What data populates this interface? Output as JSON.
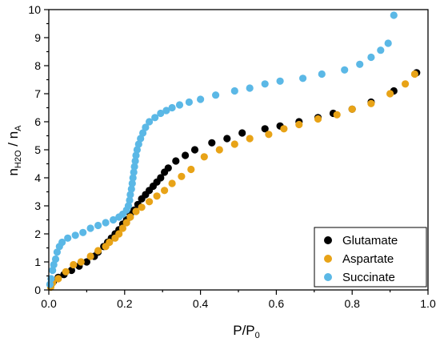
{
  "chart_data": {
    "type": "scatter",
    "xlabel": "P/P",
    "xlabel_sub": "0",
    "ylabel_main_1": "n",
    "ylabel_sub_1": "H2O",
    "ylabel_main_2": " / n",
    "ylabel_sub_2": "A",
    "xlim": [
      0.0,
      1.0
    ],
    "ylim": [
      0,
      10
    ],
    "x_ticks": [
      "0.0",
      "0.2",
      "0.4",
      "0.6",
      "0.8",
      "1.0"
    ],
    "y_ticks": [
      "0",
      "1",
      "2",
      "3",
      "4",
      "5",
      "6",
      "7",
      "8",
      "9",
      "10"
    ],
    "legend_position": "bottom-right",
    "series": [
      {
        "name": "Glutamate",
        "color": "#000000",
        "points": [
          [
            0.005,
            0.15
          ],
          [
            0.012,
            0.3
          ],
          [
            0.025,
            0.45
          ],
          [
            0.04,
            0.55
          ],
          [
            0.06,
            0.7
          ],
          [
            0.08,
            0.85
          ],
          [
            0.1,
            1.0
          ],
          [
            0.12,
            1.2
          ],
          [
            0.13,
            1.35
          ],
          [
            0.145,
            1.55
          ],
          [
            0.155,
            1.7
          ],
          [
            0.165,
            1.85
          ],
          [
            0.175,
            2.0
          ],
          [
            0.185,
            2.15
          ],
          [
            0.195,
            2.35
          ],
          [
            0.205,
            2.5
          ],
          [
            0.215,
            2.7
          ],
          [
            0.225,
            2.85
          ],
          [
            0.235,
            3.05
          ],
          [
            0.245,
            3.25
          ],
          [
            0.255,
            3.4
          ],
          [
            0.265,
            3.55
          ],
          [
            0.275,
            3.7
          ],
          [
            0.285,
            3.85
          ],
          [
            0.295,
            4.0
          ],
          [
            0.305,
            4.2
          ],
          [
            0.315,
            4.35
          ],
          [
            0.335,
            4.6
          ],
          [
            0.36,
            4.8
          ],
          [
            0.385,
            5.0
          ],
          [
            0.43,
            5.25
          ],
          [
            0.47,
            5.4
          ],
          [
            0.51,
            5.6
          ],
          [
            0.57,
            5.75
          ],
          [
            0.61,
            5.85
          ],
          [
            0.66,
            6.0
          ],
          [
            0.71,
            6.15
          ],
          [
            0.75,
            6.3
          ],
          [
            0.8,
            6.45
          ],
          [
            0.85,
            6.7
          ],
          [
            0.91,
            7.1
          ],
          [
            0.97,
            7.75
          ]
        ]
      },
      {
        "name": "Aspartate",
        "color": "#E8A317",
        "points": [
          [
            0.005,
            0.1
          ],
          [
            0.01,
            0.25
          ],
          [
            0.025,
            0.4
          ],
          [
            0.045,
            0.65
          ],
          [
            0.065,
            0.9
          ],
          [
            0.085,
            1.0
          ],
          [
            0.11,
            1.2
          ],
          [
            0.13,
            1.4
          ],
          [
            0.15,
            1.55
          ],
          [
            0.16,
            1.7
          ],
          [
            0.175,
            1.85
          ],
          [
            0.185,
            2.0
          ],
          [
            0.195,
            2.2
          ],
          [
            0.205,
            2.4
          ],
          [
            0.215,
            2.6
          ],
          [
            0.23,
            2.8
          ],
          [
            0.245,
            2.95
          ],
          [
            0.265,
            3.15
          ],
          [
            0.285,
            3.35
          ],
          [
            0.305,
            3.55
          ],
          [
            0.325,
            3.8
          ],
          [
            0.35,
            4.05
          ],
          [
            0.375,
            4.3
          ],
          [
            0.41,
            4.75
          ],
          [
            0.45,
            5.0
          ],
          [
            0.49,
            5.2
          ],
          [
            0.53,
            5.4
          ],
          [
            0.58,
            5.55
          ],
          [
            0.62,
            5.75
          ],
          [
            0.66,
            5.9
          ],
          [
            0.71,
            6.1
          ],
          [
            0.76,
            6.25
          ],
          [
            0.8,
            6.45
          ],
          [
            0.85,
            6.65
          ],
          [
            0.9,
            7.0
          ],
          [
            0.94,
            7.35
          ],
          [
            0.965,
            7.7
          ]
        ]
      },
      {
        "name": "Succinate",
        "color": "#5BB8E6",
        "points": [
          [
            0.003,
            0.2
          ],
          [
            0.006,
            0.4
          ],
          [
            0.01,
            0.7
          ],
          [
            0.013,
            0.9
          ],
          [
            0.018,
            1.1
          ],
          [
            0.022,
            1.35
          ],
          [
            0.028,
            1.55
          ],
          [
            0.035,
            1.7
          ],
          [
            0.05,
            1.85
          ],
          [
            0.07,
            1.95
          ],
          [
            0.09,
            2.05
          ],
          [
            0.11,
            2.2
          ],
          [
            0.13,
            2.3
          ],
          [
            0.15,
            2.4
          ],
          [
            0.17,
            2.5
          ],
          [
            0.185,
            2.6
          ],
          [
            0.195,
            2.7
          ],
          [
            0.205,
            2.85
          ],
          [
            0.21,
            3.0
          ],
          [
            0.213,
            3.2
          ],
          [
            0.215,
            3.4
          ],
          [
            0.218,
            3.6
          ],
          [
            0.22,
            3.8
          ],
          [
            0.222,
            4.0
          ],
          [
            0.224,
            4.2
          ],
          [
            0.226,
            4.4
          ],
          [
            0.228,
            4.6
          ],
          [
            0.23,
            4.8
          ],
          [
            0.233,
            5.0
          ],
          [
            0.237,
            5.2
          ],
          [
            0.242,
            5.4
          ],
          [
            0.248,
            5.6
          ],
          [
            0.255,
            5.8
          ],
          [
            0.265,
            6.0
          ],
          [
            0.28,
            6.15
          ],
          [
            0.295,
            6.3
          ],
          [
            0.31,
            6.4
          ],
          [
            0.325,
            6.5
          ],
          [
            0.345,
            6.6
          ],
          [
            0.37,
            6.7
          ],
          [
            0.4,
            6.8
          ],
          [
            0.44,
            6.95
          ],
          [
            0.49,
            7.1
          ],
          [
            0.53,
            7.2
          ],
          [
            0.57,
            7.35
          ],
          [
            0.61,
            7.45
          ],
          [
            0.67,
            7.55
          ],
          [
            0.72,
            7.7
          ],
          [
            0.78,
            7.85
          ],
          [
            0.82,
            8.05
          ],
          [
            0.85,
            8.3
          ],
          [
            0.875,
            8.55
          ],
          [
            0.895,
            8.8
          ],
          [
            0.91,
            9.8
          ]
        ]
      }
    ]
  }
}
